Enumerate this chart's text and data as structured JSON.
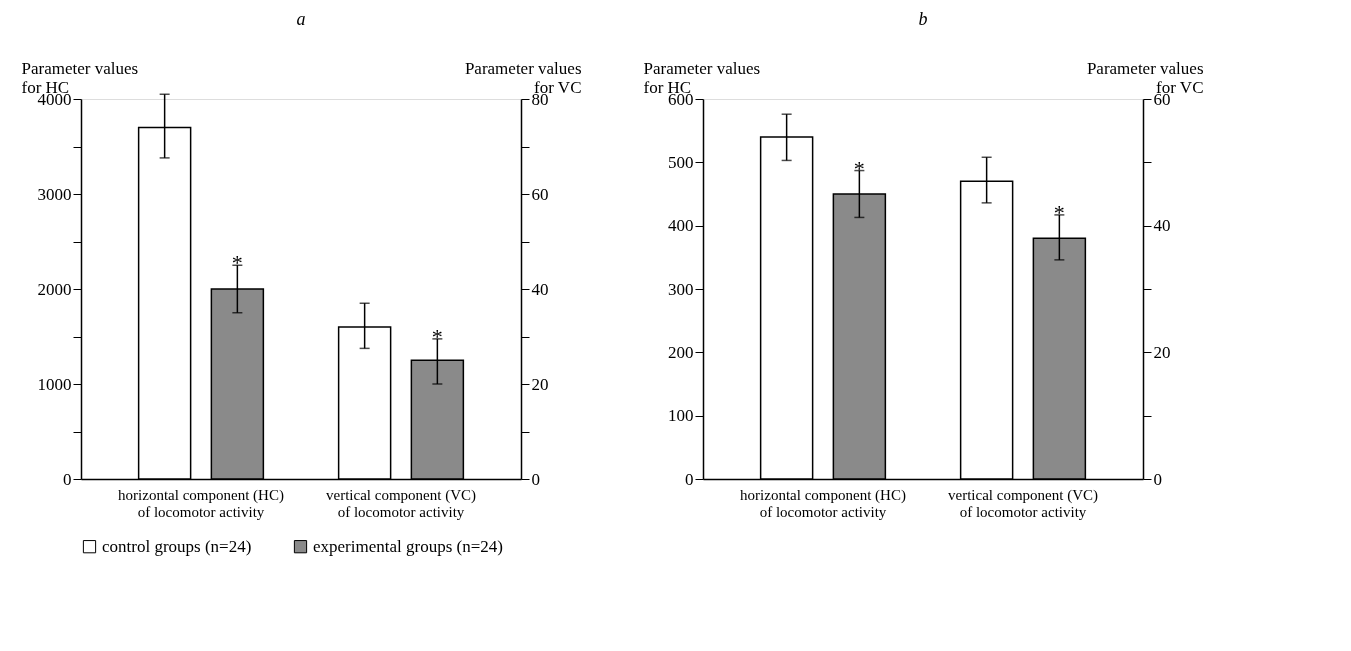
{
  "chart_data": [
    {
      "type": "bar",
      "title": "a",
      "ylabel": "Parameter values\nfor HC",
      "y2label": "Parameter values\nfor VC",
      "categories": [
        "horizontal component (HC)\nof locomotor activity",
        "vertical component (VC)\nof locomotor activity"
      ],
      "series": [
        {
          "name": "control groups (n=24)",
          "color": "#ffffff",
          "values": [
            3700,
            null
          ],
          "errors": [
            [
              3380,
              4050
            ],
            null
          ]
        },
        {
          "name": "experimental groups (n=24)",
          "color": "#8a8a8a",
          "values": [
            2000,
            null
          ],
          "errors": [
            [
              1750,
              2250
            ],
            null
          ],
          "value_labels": [
            "*",
            null
          ]
        },
        {
          "axis": "y2",
          "color": "#ffffff",
          "values": [
            null,
            32
          ],
          "errors": [
            null,
            [
              27.5,
              37
            ]
          ]
        },
        {
          "axis": "y2",
          "color": "#8a8a8a",
          "values": [
            null,
            25
          ],
          "errors": [
            null,
            [
              20,
              29.5
            ]
          ],
          "value_labels": [
            null,
            "*"
          ]
        }
      ],
      "ylim": [
        0,
        4000
      ],
      "yticks": [
        0,
        {
          "value": 500,
          "label": null
        },
        1000,
        {
          "value": 1500,
          "label": null
        },
        2000,
        {
          "value": 2500,
          "label": null
        },
        3000,
        {
          "value": 3500,
          "label": null
        },
        4000
      ],
      "y2lim": [
        0,
        80
      ],
      "y2ticks": [
        0,
        {
          "value": 10,
          "label": null
        },
        20,
        {
          "value": 30,
          "label": null
        },
        40,
        {
          "value": 50,
          "label": null
        },
        60,
        {
          "value": 70,
          "label": null
        },
        80
      ],
      "legend": "bottom",
      "grid": false
    },
    {
      "type": "bar",
      "title": "b",
      "ylabel": "Parameter values\nfor HC",
      "y2label": "Parameter values\nfor VC",
      "categories": [
        "horizontal component (HC)\nof locomotor activity",
        "vertical component (VC)\nof locomotor activity"
      ],
      "series": [
        {
          "name": "control groups (n=24)",
          "color": "#ffffff",
          "values": [
            540,
            null
          ],
          "errors": [
            [
              503,
              576
            ],
            null
          ]
        },
        {
          "name": "experimental groups (n=24)",
          "color": "#8a8a8a",
          "values": [
            450,
            null
          ],
          "errors": [
            [
              413,
              487
            ],
            null
          ],
          "value_labels": [
            "*",
            null
          ]
        },
        {
          "axis": "y2",
          "color": "#ffffff",
          "values": [
            null,
            47
          ],
          "errors": [
            null,
            [
              43.6,
              50.8
            ]
          ]
        },
        {
          "axis": "y2",
          "color": "#8a8a8a",
          "values": [
            null,
            38
          ],
          "errors": [
            null,
            [
              34.6,
              41.7
            ]
          ],
          "value_labels": [
            null,
            "*"
          ]
        }
      ],
      "ylim": [
        0,
        600
      ],
      "yticks": [
        0,
        100,
        200,
        300,
        400,
        500,
        600
      ],
      "y2lim": [
        0,
        60
      ],
      "y2ticks": [
        0,
        {
          "value": 10,
          "label": null
        },
        20,
        {
          "value": 30,
          "label": null
        },
        40,
        {
          "value": 50,
          "label": null
        },
        60
      ],
      "legend": "bottom",
      "grid": false
    }
  ]
}
